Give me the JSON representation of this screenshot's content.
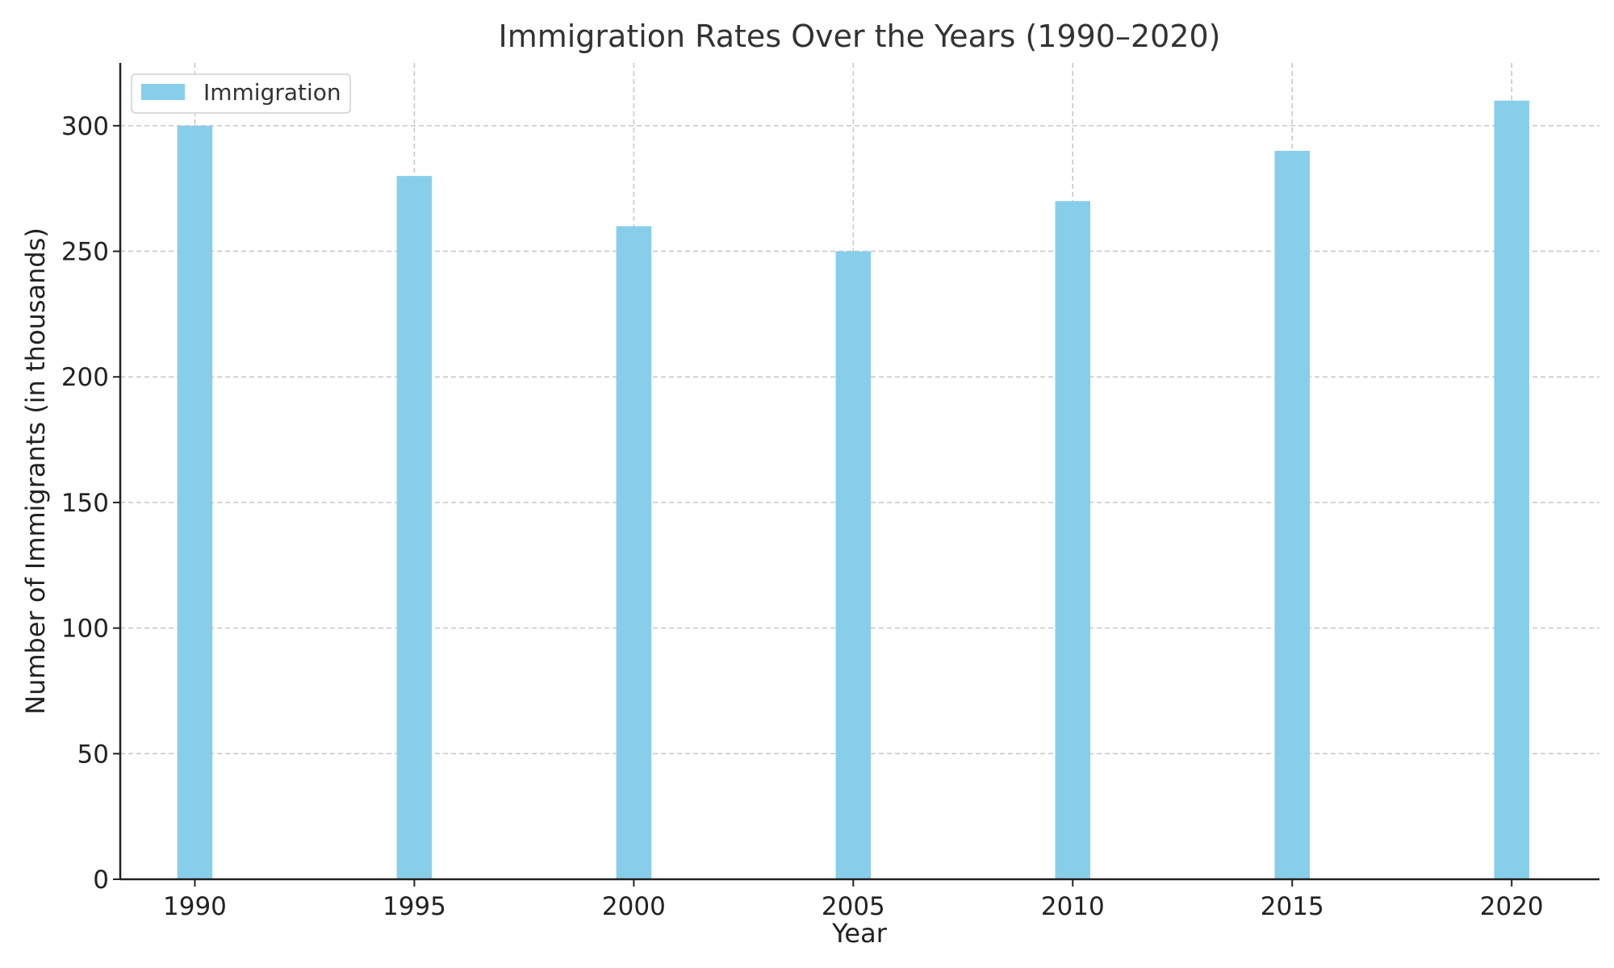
{
  "chart_data": {
    "type": "bar",
    "title": "Immigration Rates Over the Years (1990–2020)",
    "xlabel": "Year",
    "ylabel": "Number of Immigrants (in thousands)",
    "categories": [
      "1990",
      "1995",
      "2000",
      "2005",
      "2010",
      "2015",
      "2020"
    ],
    "series": [
      {
        "name": "Immigration",
        "color": "#87ceeb",
        "values": [
          300,
          280,
          260,
          250,
          270,
          290,
          310
        ]
      }
    ],
    "x_range": [
      1988.3,
      2022
    ],
    "ylim": [
      0,
      325
    ],
    "yticks": [
      0,
      50,
      100,
      150,
      200,
      250,
      300
    ],
    "grid": true,
    "legend_position": "top-left"
  }
}
